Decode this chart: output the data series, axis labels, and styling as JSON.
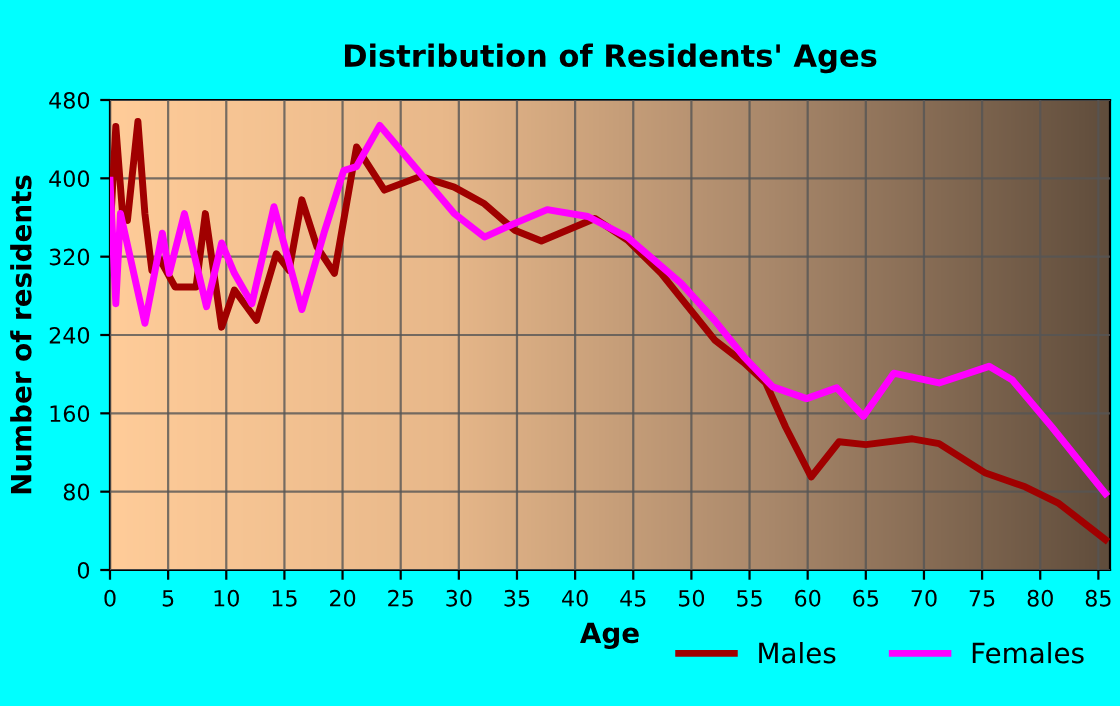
{
  "chart_data": {
    "type": "line",
    "title": "Distribution of Residents' Ages",
    "xlabel": "Age",
    "ylabel": "Number of residents",
    "series": [
      {
        "name": "Males",
        "color": "#a00000",
        "x": [
          0.1,
          0.5,
          1.1,
          1.5,
          2.4,
          3,
          3.6,
          4.3,
          5.6,
          7.4,
          8.2,
          9.6,
          10.7,
          12.6,
          14.3,
          15.4,
          16.5,
          17.8,
          19.3,
          21.2,
          23.6,
          26.7,
          29.6,
          32.2,
          34.8,
          37.1,
          41.7,
          44.5,
          47.4,
          49.7,
          52,
          54.5,
          56.4,
          58.1,
          60.3,
          62.7,
          65,
          69,
          71.3,
          75.3,
          78.7,
          81.6,
          85.6
        ],
        "values": [
          364,
          453,
          361,
          357,
          458,
          364,
          306,
          317,
          289,
          289,
          364,
          248,
          286,
          255,
          323,
          306,
          378,
          330,
          303,
          432,
          388,
          402,
          391,
          374,
          347,
          336,
          359,
          337,
          303,
          269,
          235,
          212,
          191,
          146,
          95,
          131,
          128,
          134,
          129,
          99,
          85,
          68,
          31
        ]
      },
      {
        "name": "Females",
        "color": "#ff00ff",
        "x": [
          0,
          0.5,
          0.9,
          3,
          4.5,
          5.1,
          6.4,
          8.3,
          9.6,
          10.7,
          12.2,
          14.1,
          16.5,
          18.4,
          20.1,
          21.2,
          23.2,
          26.7,
          29.6,
          32.2,
          34.8,
          37.6,
          41.1,
          44.5,
          49.1,
          52,
          54.5,
          57,
          59.9,
          62.5,
          64.8,
          67.4,
          71.3,
          75.6,
          77.6,
          81,
          85.6
        ],
        "values": [
          398,
          272,
          364,
          252,
          344,
          303,
          364,
          269,
          334,
          303,
          272,
          371,
          266,
          344,
          408,
          412,
          454,
          405,
          364,
          340,
          354,
          368,
          361,
          340,
          293,
          255,
          218,
          187,
          175,
          186,
          157,
          201,
          191,
          208,
          194,
          146,
          78
        ]
      }
    ],
    "xlim": [
      0,
      86
    ],
    "ylim": [
      0,
      480
    ],
    "xticks": [
      0,
      5,
      10,
      15,
      20,
      25,
      30,
      35,
      40,
      45,
      50,
      55,
      60,
      65,
      70,
      75,
      80,
      85
    ],
    "yticks": [
      0,
      80,
      160,
      240,
      320,
      400,
      480
    ],
    "grid": true,
    "legend": "bottom right"
  }
}
